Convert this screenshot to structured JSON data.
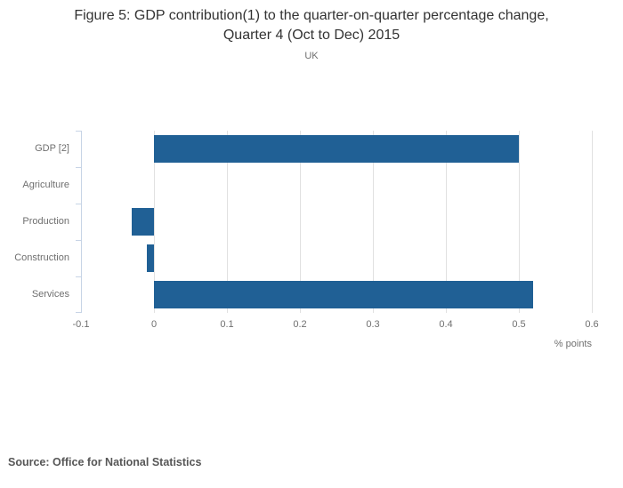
{
  "header": {
    "title_line1": "Figure 5: GDP contribution(1) to the quarter-on-quarter percentage change,",
    "title_line2": "Quarter 4 (Oct to Dec) 2015",
    "subtitle": "UK"
  },
  "chart_data": {
    "type": "bar",
    "orientation": "horizontal",
    "title": "Figure 5: GDP contribution(1) to the quarter-on-quarter percentage change, Quarter 4 (Oct to Dec) 2015",
    "subtitle": "UK",
    "categories": [
      "GDP [2]",
      "Agriculture",
      "Production",
      "Construction",
      "Services"
    ],
    "values": [
      0.5,
      0,
      -0.03,
      -0.01,
      0.52
    ],
    "xlabel": "% points",
    "ylabel": "",
    "xlim": [
      -0.1,
      0.6
    ],
    "xticks": [
      -0.1,
      0,
      0.1,
      0.2,
      0.3,
      0.4,
      0.5,
      0.6
    ],
    "xtick_labels": [
      "-0.1",
      "0",
      "0.1",
      "0.2",
      "0.3",
      "0.4",
      "0.5",
      "0.6"
    ],
    "grid": true,
    "legend": "none",
    "colors": {
      "bar": "#206095",
      "gridline": "#e1e1e1",
      "category_axis": "#c7d4e6",
      "tick_text": "#6f6f6f",
      "title_text": "#333333"
    }
  },
  "footer": {
    "source": "Source: Office for National Statistics"
  }
}
